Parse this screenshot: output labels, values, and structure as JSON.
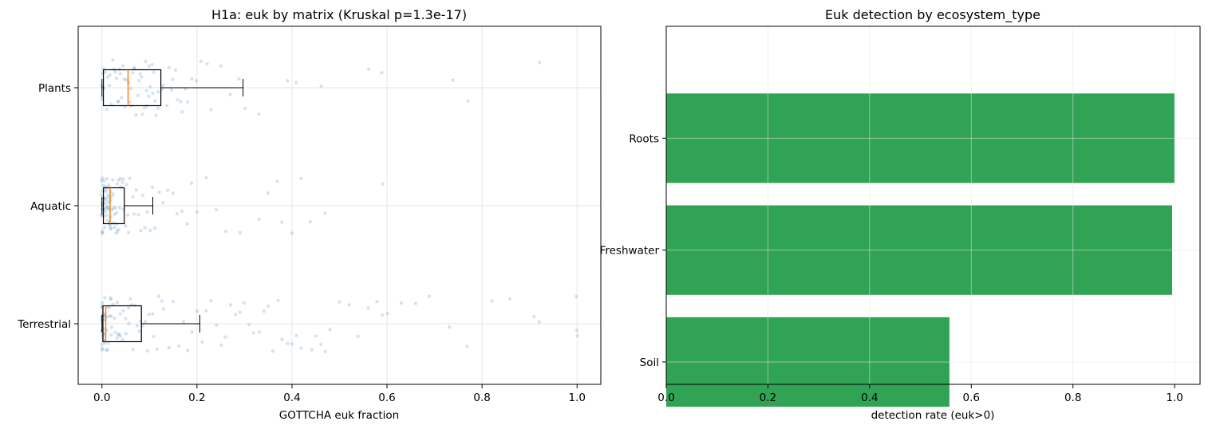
{
  "colors": {
    "point": "#4682b4",
    "median": "#ff7f0e",
    "bar": "#31a354",
    "grid": "#e6e6e6",
    "axis": "#000000"
  },
  "chart_data": [
    {
      "type": "box",
      "title": "H1a: euk by matrix (Kruskal p=1.3e-17)",
      "xlabel": "GOTTCHA euk fraction",
      "ylabel": "",
      "xlim": [
        -0.05,
        1.05
      ],
      "xticks": [
        0.0,
        0.2,
        0.4,
        0.6,
        0.8,
        1.0
      ],
      "xtick_labels": [
        "0.0",
        "0.2",
        "0.4",
        "0.6",
        "0.8",
        "1.0"
      ],
      "grid": true,
      "categories": [
        "Plants",
        "Aquatic",
        "Terrestrial"
      ],
      "boxes": [
        {
          "name": "Plants",
          "q1": 0.003,
          "median": 0.055,
          "q3": 0.124,
          "whisker_low": 0.0,
          "whisker_high": 0.297
        },
        {
          "name": "Aquatic",
          "q1": 0.003,
          "median": 0.017,
          "q3": 0.047,
          "whisker_low": 0.0,
          "whisker_high": 0.107
        },
        {
          "name": "Terrestrial",
          "q1": 0.002,
          "median": 0.008,
          "q3": 0.083,
          "whisker_low": 0.0,
          "whisker_high": 0.206
        }
      ],
      "points": {
        "Plants": [
          0.0,
          0.0,
          0.001,
          0.002,
          0.003,
          0.005,
          0.008,
          0.01,
          0.012,
          0.015,
          0.018,
          0.02,
          0.022,
          0.025,
          0.028,
          0.03,
          0.033,
          0.035,
          0.038,
          0.04,
          0.042,
          0.045,
          0.048,
          0.05,
          0.052,
          0.055,
          0.058,
          0.06,
          0.063,
          0.065,
          0.068,
          0.07,
          0.072,
          0.075,
          0.078,
          0.08,
          0.083,
          0.085,
          0.088,
          0.09,
          0.093,
          0.095,
          0.098,
          0.1,
          0.103,
          0.105,
          0.108,
          0.11,
          0.113,
          0.115,
          0.118,
          0.12,
          0.125,
          0.13,
          0.135,
          0.14,
          0.145,
          0.15,
          0.155,
          0.16,
          0.165,
          0.17,
          0.175,
          0.18,
          0.19,
          0.2,
          0.21,
          0.22,
          0.23,
          0.25,
          0.27,
          0.29,
          0.3,
          0.33,
          0.39,
          0.41,
          0.46,
          0.56,
          0.59,
          0.74,
          0.77,
          0.92
        ],
        "Aquatic": [
          0.0,
          0.0,
          0.0,
          0.0,
          0.0,
          0.001,
          0.001,
          0.001,
          0.002,
          0.002,
          0.002,
          0.003,
          0.003,
          0.003,
          0.004,
          0.004,
          0.004,
          0.005,
          0.005,
          0.005,
          0.006,
          0.006,
          0.007,
          0.007,
          0.008,
          0.008,
          0.009,
          0.009,
          0.01,
          0.01,
          0.011,
          0.011,
          0.012,
          0.012,
          0.013,
          0.013,
          0.014,
          0.014,
          0.015,
          0.015,
          0.016,
          0.016,
          0.017,
          0.017,
          0.018,
          0.018,
          0.019,
          0.02,
          0.021,
          0.022,
          0.023,
          0.024,
          0.025,
          0.026,
          0.027,
          0.028,
          0.029,
          0.03,
          0.031,
          0.032,
          0.033,
          0.034,
          0.035,
          0.036,
          0.037,
          0.038,
          0.04,
          0.042,
          0.044,
          0.046,
          0.048,
          0.05,
          0.053,
          0.056,
          0.06,
          0.064,
          0.068,
          0.072,
          0.076,
          0.08,
          0.085,
          0.09,
          0.095,
          0.1,
          0.105,
          0.11,
          0.12,
          0.13,
          0.14,
          0.15,
          0.16,
          0.17,
          0.18,
          0.19,
          0.2,
          0.22,
          0.24,
          0.26,
          0.29,
          0.33,
          0.35,
          0.37,
          0.38,
          0.4,
          0.42,
          0.44,
          0.47,
          0.59
        ],
        "Terrestrial": [
          0.0,
          0.0,
          0.0,
          0.0,
          0.0,
          0.0,
          0.001,
          0.001,
          0.001,
          0.002,
          0.002,
          0.002,
          0.003,
          0.003,
          0.004,
          0.004,
          0.005,
          0.005,
          0.006,
          0.006,
          0.007,
          0.007,
          0.008,
          0.008,
          0.009,
          0.01,
          0.011,
          0.012,
          0.013,
          0.014,
          0.015,
          0.016,
          0.017,
          0.018,
          0.019,
          0.02,
          0.022,
          0.024,
          0.026,
          0.028,
          0.03,
          0.032,
          0.034,
          0.036,
          0.038,
          0.04,
          0.043,
          0.046,
          0.049,
          0.052,
          0.055,
          0.058,
          0.061,
          0.064,
          0.067,
          0.07,
          0.074,
          0.078,
          0.082,
          0.086,
          0.09,
          0.095,
          0.1,
          0.105,
          0.11,
          0.115,
          0.12,
          0.125,
          0.13,
          0.14,
          0.15,
          0.16,
          0.17,
          0.18,
          0.19,
          0.2,
          0.21,
          0.22,
          0.23,
          0.24,
          0.25,
          0.26,
          0.27,
          0.28,
          0.29,
          0.3,
          0.31,
          0.32,
          0.33,
          0.34,
          0.35,
          0.36,
          0.37,
          0.38,
          0.39,
          0.4,
          0.41,
          0.42,
          0.44,
          0.45,
          0.46,
          0.47,
          0.48,
          0.5,
          0.52,
          0.54,
          0.56,
          0.58,
          0.59,
          0.6,
          0.63,
          0.66,
          0.69,
          0.73,
          0.77,
          0.82,
          0.86,
          0.91,
          0.92,
          1.0,
          1.0,
          1.0
        ]
      }
    },
    {
      "type": "bar",
      "orientation": "horizontal",
      "title": "Euk detection by ecosystem_type",
      "xlabel": "detection rate (euk>0)",
      "ylabel": "",
      "xlim": [
        0.0,
        1.05
      ],
      "xticks": [
        0.0,
        0.2,
        0.4,
        0.6,
        0.8,
        1.0
      ],
      "xtick_labels": [
        "0.0",
        "0.2",
        "0.4",
        "0.6",
        "0.8",
        "1.0"
      ],
      "grid": true,
      "categories": [
        "Roots",
        "Freshwater",
        "Soil"
      ],
      "values": [
        1.0,
        0.995,
        0.557
      ]
    }
  ]
}
